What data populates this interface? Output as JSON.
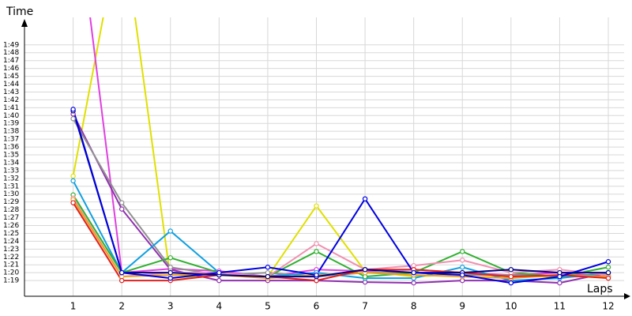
{
  "chart_data": {
    "type": "line",
    "y_label": "Time",
    "x_label": "Laps",
    "xlim": [
      0,
      12
    ],
    "xticks": [
      1,
      2,
      3,
      4,
      5,
      6,
      7,
      8,
      9,
      10,
      11,
      12
    ],
    "ylim": [
      77,
      112.5
    ],
    "yticks": [
      {
        "value": 79,
        "label": "1:19"
      },
      {
        "value": 80,
        "label": "1:20"
      },
      {
        "value": 81,
        "label": "1:21"
      },
      {
        "value": 82,
        "label": "1:22"
      },
      {
        "value": 83,
        "label": "1:23"
      },
      {
        "value": 84,
        "label": "1:24"
      },
      {
        "value": 85,
        "label": "1:25"
      },
      {
        "value": 86,
        "label": "1:26"
      },
      {
        "value": 87,
        "label": "1:27"
      },
      {
        "value": 88,
        "label": "1:28"
      },
      {
        "value": 89,
        "label": "1:29"
      },
      {
        "value": 90,
        "label": "1:30"
      },
      {
        "value": 91,
        "label": "1:31"
      },
      {
        "value": 92,
        "label": "1:32"
      },
      {
        "value": 93,
        "label": "1:33"
      },
      {
        "value": 94,
        "label": "1:34"
      },
      {
        "value": 95,
        "label": "1:35"
      },
      {
        "value": 96,
        "label": "1:36"
      },
      {
        "value": 97,
        "label": "1:37"
      },
      {
        "value": 98,
        "label": "1:38"
      },
      {
        "value": 99,
        "label": "1:39"
      },
      {
        "value": 100,
        "label": "1:40"
      },
      {
        "value": 101,
        "label": "1:41"
      },
      {
        "value": 102,
        "label": "1:42"
      },
      {
        "value": 103,
        "label": "1:43"
      },
      {
        "value": 104,
        "label": "1:44"
      },
      {
        "value": 105,
        "label": "1:45"
      },
      {
        "value": 106,
        "label": "1:46"
      },
      {
        "value": 107,
        "label": "1:47"
      },
      {
        "value": 108,
        "label": "1:48"
      },
      {
        "value": 109,
        "label": "1:49"
      }
    ],
    "grid": true,
    "x": [
      1,
      2,
      3,
      4,
      5,
      6,
      7,
      8,
      9,
      10,
      11,
      12
    ],
    "series": [
      {
        "color": "#e0e000",
        "values": [
          92.3,
          125,
          79.3,
          79.8,
          79.5,
          88.5,
          80.2,
          79.5,
          79.8,
          79.5,
          79.5,
          79.6
        ]
      },
      {
        "color": "#e040e0",
        "values": [
          130,
          80.0,
          80.5,
          80.2,
          79.5,
          80.4,
          80.2,
          80.4,
          80.0,
          79.7,
          80.0,
          79.5
        ]
      },
      {
        "color": "#9030b0",
        "values": [
          100.2,
          88.1,
          80.4,
          79.0,
          79.0,
          79.0,
          78.8,
          78.7,
          79.0,
          79.0,
          78.7,
          80.0
        ]
      },
      {
        "color": "#909090",
        "values": [
          99.6,
          88.9,
          80.7,
          79.7,
          80.0,
          79.5,
          80.0,
          80.0,
          79.7,
          79.7,
          79.5,
          79.5
        ]
      },
      {
        "color": "#10a0e0",
        "values": [
          91.7,
          80.0,
          85.3,
          80.0,
          79.5,
          80.0,
          79.3,
          79.3,
          80.7,
          79.0,
          79.3,
          80.0
        ]
      },
      {
        "color": "#30b030",
        "values": [
          89.9,
          80.0,
          81.9,
          80.0,
          79.5,
          82.7,
          79.5,
          80.0,
          82.7,
          80.0,
          79.5,
          80.7
        ]
      },
      {
        "color": "#f090b0",
        "values": [
          89.5,
          79.5,
          80.0,
          80.0,
          79.5,
          83.7,
          80.4,
          80.9,
          81.6,
          80.0,
          80.4,
          79.7
        ]
      },
      {
        "color": "#f0a020",
        "values": [
          89.3,
          79.5,
          79.7,
          79.7,
          79.3,
          79.7,
          80.0,
          79.7,
          79.5,
          79.3,
          79.7,
          79.5
        ]
      },
      {
        "color": "#e02020",
        "values": [
          88.9,
          79.0,
          79.0,
          79.7,
          79.5,
          79.0,
          80.4,
          80.4,
          80.0,
          79.5,
          79.7,
          79.3
        ]
      },
      {
        "color": "#000080",
        "values": [
          100.6,
          80.0,
          80.0,
          79.7,
          79.5,
          79.5,
          80.4,
          80.0,
          80.0,
          80.4,
          80.0,
          80.0
        ]
      },
      {
        "color": "#0000e0",
        "values": [
          100.8,
          80.0,
          79.3,
          80.0,
          80.7,
          79.7,
          89.4,
          80.0,
          79.7,
          78.7,
          79.5,
          81.4
        ]
      }
    ]
  }
}
